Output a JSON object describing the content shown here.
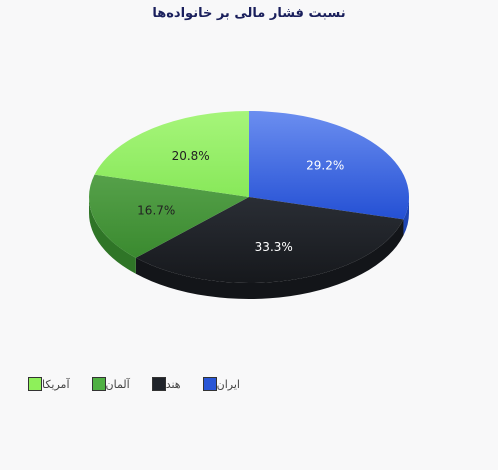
{
  "chart_data": {
    "type": "pie",
    "title": "نسبت فشار مالی بر خانواده‌ها",
    "slices": [
      {
        "name": "ایران",
        "value": 29.2,
        "label": "29.2%",
        "color": "#4170d9",
        "dark": "#1e45b3"
      },
      {
        "name": "هند",
        "value": 33.3,
        "label": "33.3%",
        "color": "#24272d",
        "dark": "#131519"
      },
      {
        "name": "آلمان",
        "value": 16.7,
        "label": "16.7%",
        "color": "#4a9a3d",
        "dark": "#2f7527"
      },
      {
        "name": "آمریکا",
        "value": 20.8,
        "label": "20.8%",
        "color": "#9cf26f",
        "dark": "#6cc24a"
      }
    ],
    "legend_position": "bottom-left"
  },
  "legend": {
    "items": [
      {
        "label": "ایران",
        "color": "#2956d6"
      },
      {
        "label": "هند",
        "color": "#1f232a"
      },
      {
        "label": "آلمان",
        "color": "#4fb043"
      },
      {
        "label": "آمریکا",
        "color": "#8ef05a"
      }
    ]
  }
}
